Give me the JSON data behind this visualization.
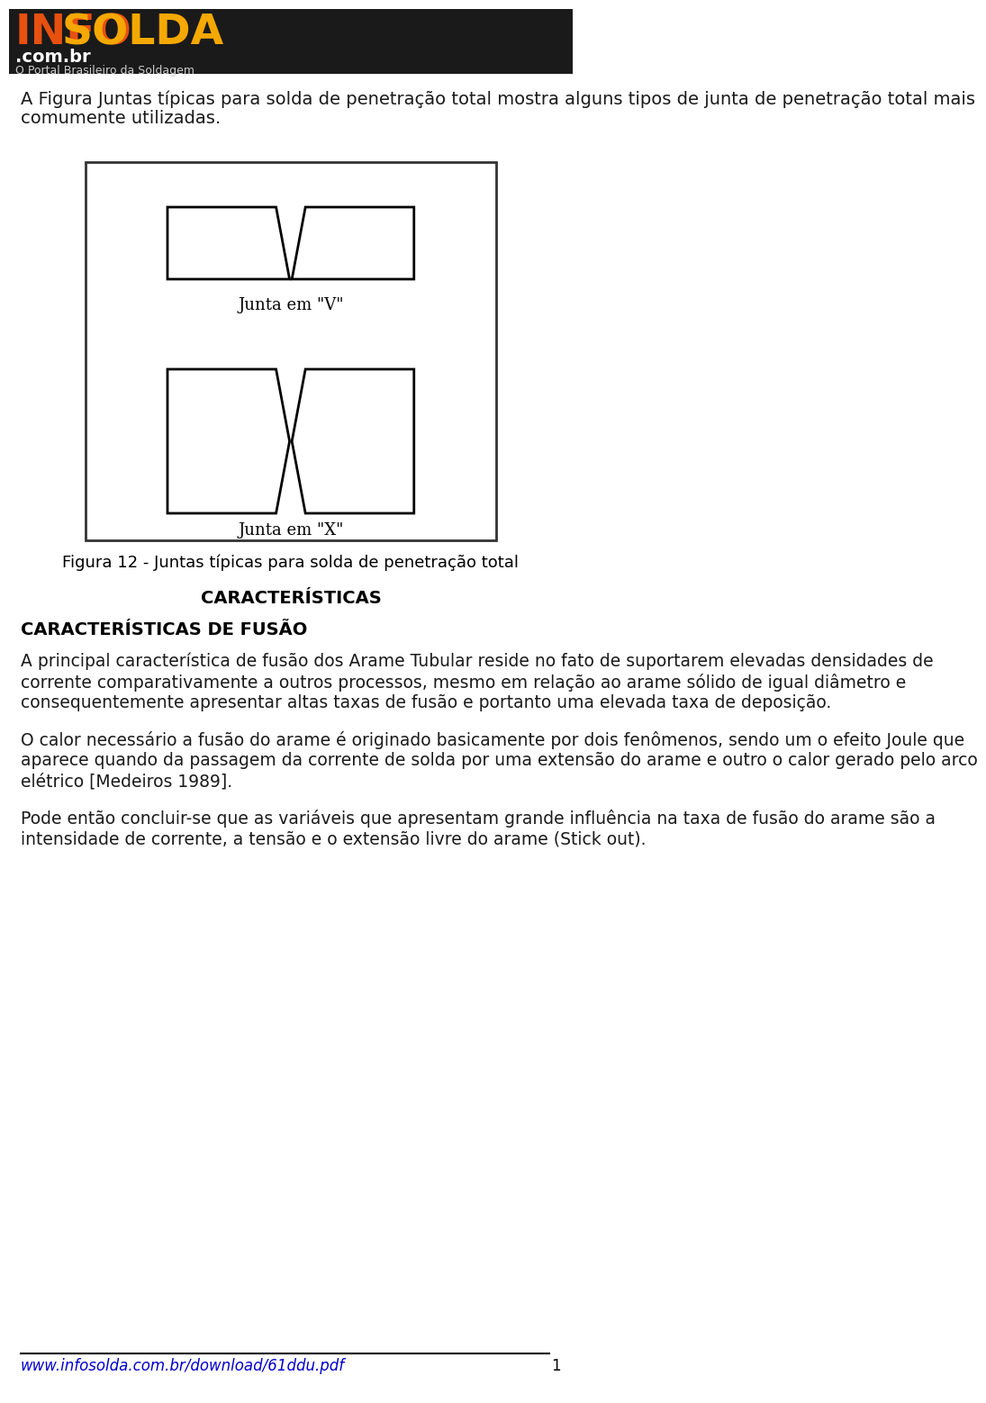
{
  "page_bg": "#ffffff",
  "logo_bar_color": "#1a1a1a",
  "logo_text": "INFOSOLDA",
  "logo_subtext": "O Portal Brasileiro da Soldagem",
  "body_text_color": "#1a1a1a",
  "link_color": "#0000cc",
  "footer_line_color": "#000000",
  "page_number": "1",
  "intro_text": "A Figura Juntas típicas para solda de penetração total mostra alguns tipos de junta de penetração total mais comumente utilizadas.",
  "figure_caption": "Figura 12 - Juntas típicas para solda de penetração total",
  "section_title": "CARACTERÍSTICAS",
  "section_subtitle": "CARACTERÍSTICAS DE FUSÃO",
  "body_paragraphs": [
    "A principal característica de fusão dos Arame Tubular reside no fato de suportarem elevadas densidades de corrente comparativamente a outros processos, mesmo em relação ao arame sólido de igual diâmetro e consequentemente apresentar altas taxas de fusão e portanto uma elevada taxa de deposição.",
    "O calor necessário a fusão do arame é originado basicamente por dois fenômenos, sendo um o efeito Joule que aparece quando da passagem da corrente de solda por uma extensão do arame e outro o calor gerado pelo arco elétrico [Medeiros 1989].",
    "Pode então concluir-se que as variáveis que apresentam grande influência na taxa de fusão do arame são a intensidade de corrente, a tensão e o extensão livre do arame (Stick out)."
  ],
  "footer_url": "www.infosolda.com.br/download/61ddu.pdf",
  "label_v": "Junta em \"V\"",
  "label_x": "Junta em \"X\""
}
